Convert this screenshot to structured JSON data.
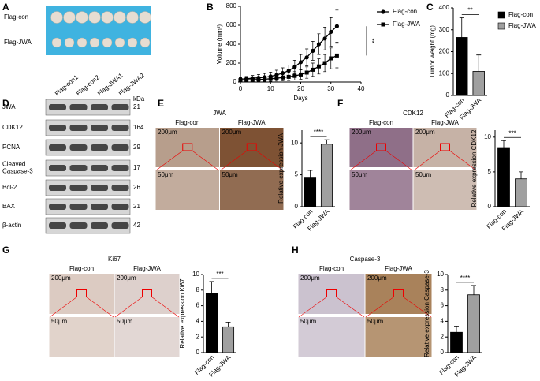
{
  "panel_labels": [
    "A",
    "B",
    "C",
    "D",
    "E",
    "F",
    "G",
    "H"
  ],
  "photo": {
    "rows": [
      "Flag-con",
      "Flag-JWA"
    ]
  },
  "blot": {
    "lanes": [
      "Flag-con1",
      "Flag-con2",
      "Flag-JWA1",
      "Flag-JWA2"
    ],
    "unit": "kDa",
    "proteins": [
      {
        "name": [
          "JWA"
        ],
        "kda": 21
      },
      {
        "name": [
          "CDK12"
        ],
        "kda": 164
      },
      {
        "name": [
          "PCNA"
        ],
        "kda": 29
      },
      {
        "name": [
          "Cleaved",
          "Caspase-3"
        ],
        "kda": 17
      },
      {
        "name": [
          "Bcl-2"
        ],
        "kda": 26
      },
      {
        "name": [
          "BAX"
        ],
        "kda": 21
      },
      {
        "name": [
          "β-actin"
        ],
        "kda": 42
      }
    ]
  },
  "ihc": [
    {
      "title": "JWA",
      "groups": [
        "Flag-con",
        "Flag-JWA"
      ],
      "scale_low": "200μm",
      "scale_high": "50μm"
    },
    {
      "title": "CDK12",
      "groups": [
        "Flag-con",
        "Flag-JWA"
      ],
      "scale_low": "200μm",
      "scale_high": "50μm"
    },
    {
      "title": "Ki67",
      "groups": [
        "Flag-con",
        "Flag-JWA"
      ],
      "scale_low": "200μm",
      "scale_high": "50μm"
    },
    {
      "title": "Caspase-3",
      "groups": [
        "Flag-con",
        "Flag-JWA"
      ],
      "scale_low": "200μm",
      "scale_high": "50μm"
    }
  ],
  "chart_data": [
    {
      "type": "line",
      "x_label": "Days",
      "y_label": "Volume (mm³)",
      "x": [
        0,
        2,
        4,
        6,
        8,
        10,
        12,
        14,
        16,
        18,
        20,
        22,
        24,
        26,
        28,
        30,
        32
      ],
      "series": [
        {
          "name": "Flag-con",
          "color": "#000000",
          "marker": "circle",
          "values": [
            30,
            35,
            40,
            45,
            50,
            60,
            75,
            95,
            120,
            160,
            210,
            260,
            330,
            400,
            460,
            530,
            590
          ],
          "errors": [
            20,
            25,
            30,
            35,
            40,
            45,
            50,
            55,
            60,
            70,
            80,
            90,
            100,
            110,
            120,
            150,
            170
          ]
        },
        {
          "name": "Flag-JWA",
          "color": "#000000",
          "marker": "square",
          "values": [
            20,
            22,
            25,
            28,
            30,
            35,
            40,
            48,
            55,
            65,
            80,
            100,
            130,
            165,
            200,
            250,
            280
          ],
          "errors": [
            15,
            18,
            20,
            22,
            25,
            28,
            30,
            35,
            40,
            45,
            50,
            60,
            70,
            80,
            90,
            110,
            130
          ]
        }
      ],
      "xlim": [
        0,
        40
      ],
      "xticks": [
        0,
        10,
        20,
        30,
        40
      ],
      "ylim": [
        0,
        800
      ],
      "yticks": [
        0,
        200,
        400,
        600,
        800
      ],
      "annotation": "**"
    },
    {
      "type": "bar",
      "y_label": "Tumor weight (mg)",
      "categories": [
        "Flag-con",
        "Flag-JWA"
      ],
      "values": [
        265,
        110
      ],
      "errors": [
        90,
        75
      ],
      "colors": [
        "#000000",
        "#a0a0a0"
      ],
      "legend": true,
      "ylim": [
        0,
        400
      ],
      "yticks": [
        0,
        100,
        200,
        300,
        400
      ],
      "annotation": "**"
    },
    {
      "type": "bar",
      "y_label": "Relative expression JWA",
      "categories": [
        "Flag-con",
        "Flag-JWA"
      ],
      "values": [
        4.5,
        9.8
      ],
      "errors": [
        1.2,
        0.7
      ],
      "colors": [
        "#000000",
        "#a0a0a0"
      ],
      "legend": false,
      "ylim": [
        0,
        12
      ],
      "yticks": [
        0,
        5,
        10
      ],
      "annotation": "****"
    },
    {
      "type": "bar",
      "y_label": "Relative expression CDK12",
      "categories": [
        "Flag-con",
        "Flag-JWA"
      ],
      "values": [
        8.5,
        4.0
      ],
      "errors": [
        1.0,
        1.0
      ],
      "colors": [
        "#000000",
        "#a0a0a0"
      ],
      "legend": false,
      "ylim": [
        0,
        11
      ],
      "yticks": [
        0,
        5,
        10
      ],
      "annotation": "***"
    },
    {
      "type": "bar",
      "y_label": "Relative expression Ki67",
      "categories": [
        "Flag-con",
        "Flag-JWA"
      ],
      "values": [
        7.6,
        3.3
      ],
      "errors": [
        1.5,
        0.6
      ],
      "colors": [
        "#000000",
        "#a0a0a0"
      ],
      "legend": false,
      "ylim": [
        0,
        10
      ],
      "yticks": [
        0,
        2,
        4,
        6,
        8,
        10
      ],
      "annotation": "***"
    },
    {
      "type": "bar",
      "y_label": "Relative expression Caspase-3",
      "categories": [
        "Flag-con",
        "Flag-JWA"
      ],
      "values": [
        2.6,
        7.4
      ],
      "errors": [
        0.8,
        1.2
      ],
      "colors": [
        "#000000",
        "#a0a0a0"
      ],
      "legend": false,
      "ylim": [
        0,
        10
      ],
      "yticks": [
        0,
        2,
        4,
        6,
        8,
        10
      ],
      "annotation": "****"
    }
  ]
}
